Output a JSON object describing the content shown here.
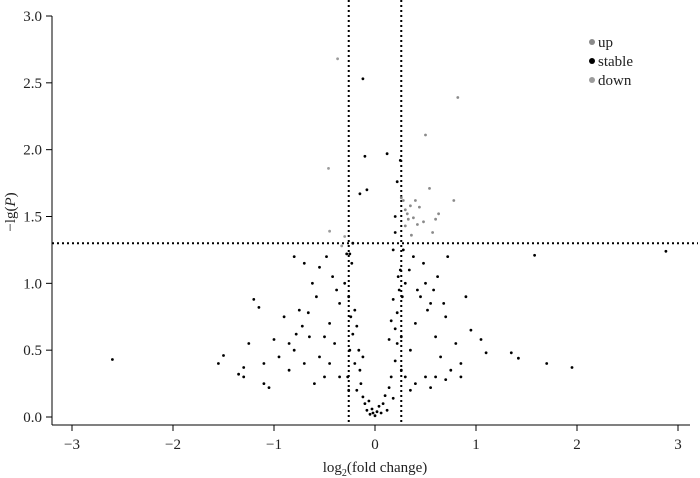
{
  "chart_data": {
    "type": "scatter",
    "title": "",
    "xlabel": {
      "prefix": "log",
      "sub": "2",
      "suffix": "(fold change)"
    },
    "ylabel": {
      "prefix": "−lg(",
      "italic": "P",
      "suffix": ")"
    },
    "xlim": [
      -3,
      3
    ],
    "ylim": [
      0,
      3.0
    ],
    "x_ticks": [
      -3,
      -2,
      -1,
      0,
      1,
      2,
      3
    ],
    "x_tick_labels": [
      "−3",
      "−2",
      "−1",
      "0",
      "1",
      "2",
      "3"
    ],
    "y_ticks": [
      0,
      0.5,
      1.0,
      1.5,
      2.0,
      2.5,
      3.0
    ],
    "y_tick_labels": [
      "0.0",
      "0.5",
      "1.0",
      "1.5",
      "2.0",
      "2.5",
      "3.0"
    ],
    "grid": false,
    "legend_position": "top-right",
    "thresholds": {
      "vertical_x": [
        -0.26,
        0.26
      ],
      "horizontal_y": 1.3
    },
    "colors": {
      "up": "#8a8a8a",
      "stable": "#000000",
      "down": "#9c9c9c",
      "threshold": "#000000"
    },
    "series": [
      {
        "name": "up",
        "points": [
          [
            0.26,
            1.64
          ],
          [
            0.28,
            1.62
          ],
          [
            0.3,
            1.55
          ],
          [
            0.32,
            1.52
          ],
          [
            0.35,
            1.58
          ],
          [
            0.38,
            1.49
          ],
          [
            0.4,
            1.62
          ],
          [
            0.42,
            1.44
          ],
          [
            0.48,
            1.46
          ],
          [
            0.5,
            2.11
          ],
          [
            0.54,
            1.71
          ],
          [
            0.57,
            1.38
          ],
          [
            0.6,
            1.48
          ],
          [
            0.63,
            1.52
          ],
          [
            0.82,
            2.39
          ],
          [
            0.78,
            1.62
          ],
          [
            0.3,
            1.43
          ],
          [
            0.36,
            1.36
          ],
          [
            0.44,
            1.57
          ],
          [
            0.33,
            1.48
          ]
        ]
      },
      {
        "name": "stable",
        "points": [
          [
            -0.26,
            0.9
          ],
          [
            -0.25,
            0.5
          ],
          [
            -0.27,
            0.3
          ],
          [
            -0.26,
            0.2
          ],
          [
            0.26,
            0.35
          ],
          [
            0.27,
            0.9
          ],
          [
            0.26,
            0.6
          ],
          [
            0.25,
            1.1
          ],
          [
            -0.2,
            0.4
          ],
          [
            -0.18,
            0.2
          ],
          [
            -0.15,
            0.35
          ],
          [
            -0.12,
            0.15
          ],
          [
            -0.1,
            0.1
          ],
          [
            -0.08,
            0.05
          ],
          [
            -0.06,
            0.12
          ],
          [
            -0.05,
            0.02
          ],
          [
            -0.03,
            0.06
          ],
          [
            -0.02,
            0.03
          ],
          [
            0.0,
            0.01
          ],
          [
            0.02,
            0.04
          ],
          [
            0.04,
            0.08
          ],
          [
            0.06,
            0.03
          ],
          [
            0.08,
            0.1
          ],
          [
            0.1,
            0.16
          ],
          [
            0.12,
            0.05
          ],
          [
            0.14,
            0.22
          ],
          [
            0.16,
            0.3
          ],
          [
            0.18,
            0.14
          ],
          [
            0.2,
            0.42
          ],
          [
            0.22,
            0.55
          ],
          [
            -0.22,
            0.62
          ],
          [
            -0.24,
            0.75
          ],
          [
            -0.2,
            0.8
          ],
          [
            -0.18,
            0.68
          ],
          [
            -0.16,
            0.5
          ],
          [
            -0.14,
            0.25
          ],
          [
            -0.12,
            0.45
          ],
          [
            0.14,
            0.58
          ],
          [
            0.16,
            0.72
          ],
          [
            0.18,
            0.88
          ],
          [
            0.2,
            0.66
          ],
          [
            0.22,
            0.78
          ],
          [
            0.24,
            0.95
          ],
          [
            -0.3,
            1.0
          ],
          [
            -0.35,
            0.85
          ],
          [
            -0.4,
            0.55
          ],
          [
            -0.45,
            0.7
          ],
          [
            -0.5,
            0.3
          ],
          [
            -0.55,
            0.45
          ],
          [
            -0.6,
            0.25
          ],
          [
            -0.65,
            0.6
          ],
          [
            -0.7,
            0.4
          ],
          [
            -0.75,
            0.8
          ],
          [
            -0.8,
            0.5
          ],
          [
            -0.85,
            0.35
          ],
          [
            -0.9,
            0.75
          ],
          [
            -0.95,
            0.45
          ],
          [
            -1.0,
            0.58
          ],
          [
            -1.05,
            0.22
          ],
          [
            -1.1,
            0.4
          ],
          [
            -1.15,
            0.82
          ],
          [
            -1.2,
            0.88
          ],
          [
            -1.25,
            0.55
          ],
          [
            -1.3,
            0.37
          ],
          [
            -1.35,
            0.32
          ],
          [
            -1.5,
            0.46
          ],
          [
            -1.55,
            0.4
          ],
          [
            -2.6,
            0.43
          ],
          [
            -1.3,
            0.3
          ],
          [
            -1.1,
            0.25
          ],
          [
            -0.38,
            0.95
          ],
          [
            -0.42,
            1.05
          ],
          [
            -0.48,
            1.2
          ],
          [
            -0.55,
            1.12
          ],
          [
            -0.62,
            1.0
          ],
          [
            -0.7,
            1.15
          ],
          [
            -0.8,
            1.2
          ],
          [
            -0.58,
            0.9
          ],
          [
            -0.66,
            0.78
          ],
          [
            -0.72,
            0.68
          ],
          [
            -0.78,
            0.62
          ],
          [
            -0.85,
            0.55
          ],
          [
            -0.45,
            0.4
          ],
          [
            -0.5,
            0.6
          ],
          [
            -0.35,
            0.3
          ],
          [
            0.3,
            0.3
          ],
          [
            0.35,
            0.5
          ],
          [
            0.4,
            0.7
          ],
          [
            0.45,
            0.9
          ],
          [
            0.5,
            1.0
          ],
          [
            0.55,
            0.85
          ],
          [
            0.6,
            0.6
          ],
          [
            0.65,
            0.45
          ],
          [
            0.7,
            0.75
          ],
          [
            0.75,
            0.35
          ],
          [
            0.8,
            0.55
          ],
          [
            0.85,
            0.4
          ],
          [
            0.9,
            0.9
          ],
          [
            0.95,
            0.65
          ],
          [
            1.05,
            0.58
          ],
          [
            1.1,
            0.48
          ],
          [
            1.35,
            0.48
          ],
          [
            1.42,
            0.44
          ],
          [
            1.58,
            1.21
          ],
          [
            1.7,
            0.4
          ],
          [
            1.95,
            0.37
          ],
          [
            2.88,
            1.24
          ],
          [
            0.3,
            1.0
          ],
          [
            0.34,
            1.1
          ],
          [
            0.38,
            1.2
          ],
          [
            0.42,
            0.95
          ],
          [
            0.48,
            1.15
          ],
          [
            0.52,
            0.8
          ],
          [
            0.58,
            0.95
          ],
          [
            0.62,
            1.05
          ],
          [
            0.68,
            0.85
          ],
          [
            0.72,
            1.2
          ],
          [
            0.35,
            0.2
          ],
          [
            0.4,
            0.25
          ],
          [
            0.5,
            0.3
          ],
          [
            0.55,
            0.22
          ],
          [
            0.6,
            0.3
          ],
          [
            0.7,
            0.28
          ],
          [
            0.85,
            0.3
          ],
          [
            -0.12,
            2.53
          ],
          [
            -0.15,
            1.67
          ],
          [
            -0.08,
            1.7
          ],
          [
            -0.1,
            1.95
          ],
          [
            0.25,
            1.92
          ],
          [
            0.22,
            1.76
          ],
          [
            0.12,
            1.97
          ],
          [
            0.2,
            1.5
          ],
          [
            -0.22,
            1.3
          ],
          [
            -0.25,
            1.22
          ],
          [
            0.18,
            1.25
          ],
          [
            0.2,
            1.38
          ],
          [
            0.23,
            1.05
          ],
          [
            -0.23,
            1.15
          ],
          [
            0.28,
            1.25
          ],
          [
            -0.28,
            1.22
          ]
        ]
      },
      {
        "name": "down",
        "points": [
          [
            -0.37,
            2.68
          ],
          [
            -0.46,
            1.86
          ],
          [
            -0.45,
            1.39
          ],
          [
            -0.3,
            1.35
          ],
          [
            -0.33,
            1.28
          ]
        ]
      }
    ]
  }
}
